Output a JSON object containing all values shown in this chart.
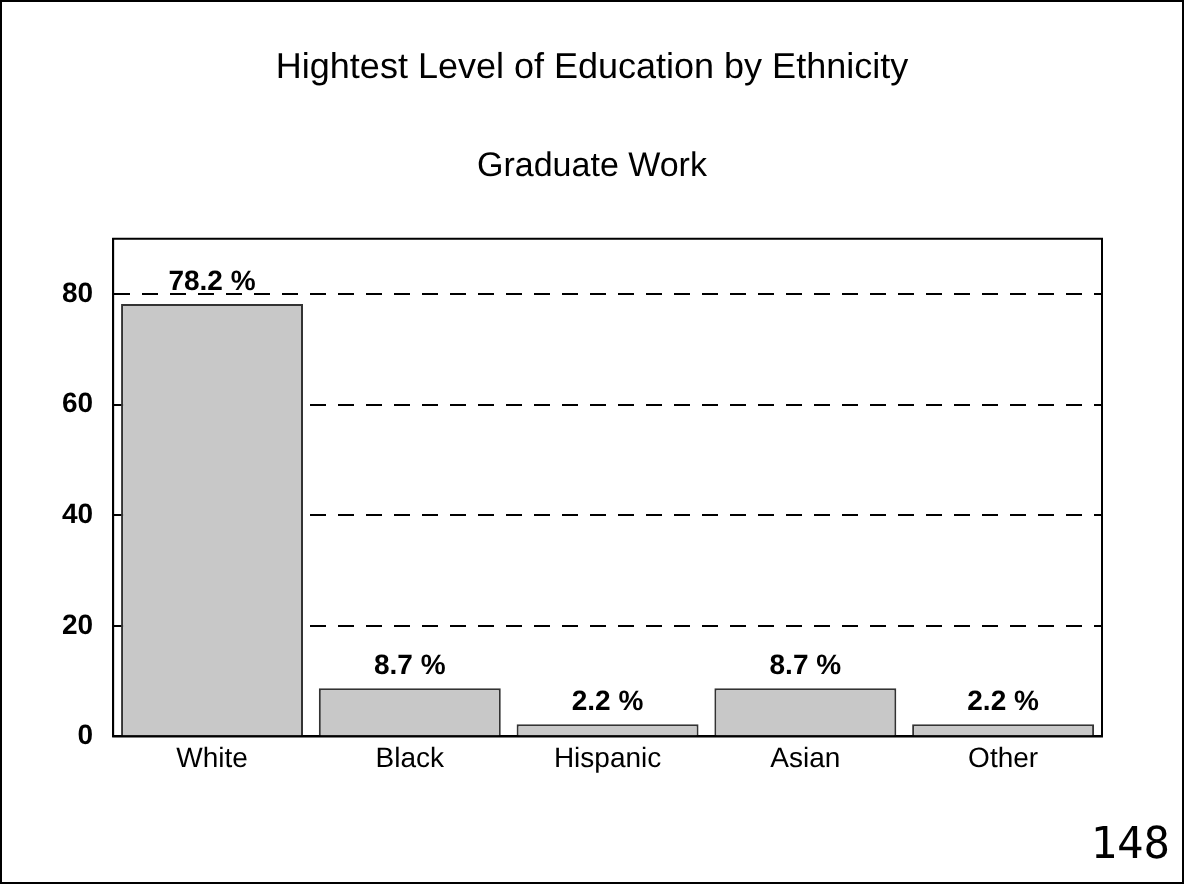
{
  "chart_data": {
    "type": "bar",
    "title": "Hightest Level of Education by Ethnicity",
    "subtitle": "Graduate Work",
    "categories": [
      "White",
      "Black",
      "Hispanic",
      "Asian",
      "Other"
    ],
    "values": [
      78.2,
      8.7,
      2.2,
      8.7,
      2.2
    ],
    "value_labels": [
      "78.2 %",
      "8.7 %",
      "2.2 %",
      "8.7 %",
      "2.2 %"
    ],
    "color": "#c8c8c8",
    "ylim": [
      0,
      90
    ],
    "yticks": [
      0,
      20,
      40,
      60,
      80
    ],
    "grid": "y",
    "line_style": "dashed",
    "legend": false,
    "annotations": [
      "148"
    ]
  }
}
